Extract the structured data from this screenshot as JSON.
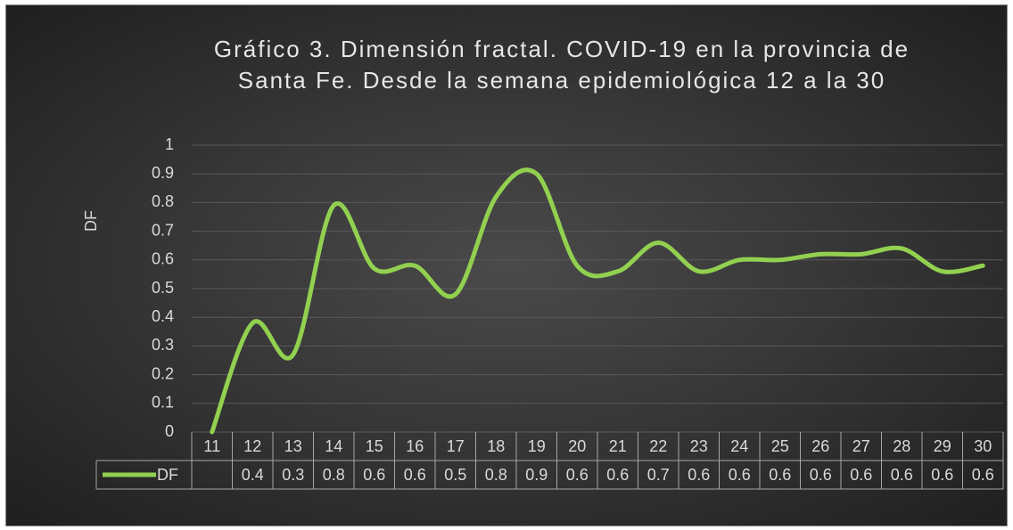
{
  "chart_data": {
    "type": "line",
    "title": "Gráfico 3. Dimensión fractal. COVID-19 en la provincia de Santa Fe. Desde la semana epidemiológica 12 a la 30",
    "y_label": "DF",
    "categories": [
      "11",
      "12",
      "13",
      "14",
      "15",
      "16",
      "17",
      "18",
      "19",
      "20",
      "21",
      "22",
      "23",
      "24",
      "25",
      "26",
      "27",
      "28",
      "29",
      "30"
    ],
    "series": [
      {
        "name": "DF",
        "color": "#92d050",
        "values": [
          0,
          0.38,
          0.27,
          0.79,
          0.57,
          0.58,
          0.48,
          0.82,
          0.9,
          0.58,
          0.56,
          0.66,
          0.56,
          0.6,
          0.6,
          0.62,
          0.62,
          0.64,
          0.56,
          0.58
        ],
        "value_labels": [
          null,
          "0.4",
          "0.3",
          "0.8",
          "0.6",
          "0.6",
          "0.5",
          "0.8",
          "0.9",
          "0.6",
          "0.6",
          "0.7",
          "0.6",
          "0.6",
          "0.6",
          "0.6",
          "0.6",
          "0.6",
          "0.6",
          "0.6"
        ]
      }
    ],
    "ylim": [
      0,
      1
    ],
    "yticks": [
      0,
      0.1,
      0.2,
      0.3,
      0.4,
      0.5,
      0.6,
      0.7,
      0.8,
      0.9,
      1
    ],
    "grid": true,
    "smooth": true
  }
}
